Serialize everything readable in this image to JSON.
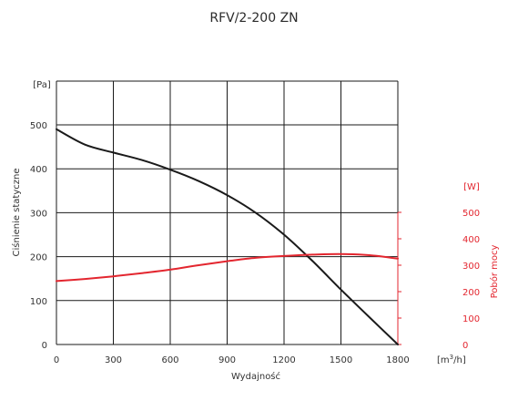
{
  "chart_data": {
    "type": "line",
    "title": "RFV/2-200 ZN",
    "xlabel": "Wydajność",
    "x_unit_prefix": "[m",
    "x_unit_sup": "3",
    "x_unit_suffix": "/h]",
    "xlim": [
      0,
      1800
    ],
    "x_ticks": [
      0,
      300,
      600,
      900,
      1200,
      1500,
      1800
    ],
    "y_left": {
      "label": "Ciśnienie statyczne",
      "unit": "[Pa]",
      "lim": [
        0,
        500
      ],
      "ticks": [
        0,
        100,
        200,
        300,
        400,
        500
      ],
      "color": "#1a1a1a"
    },
    "y_right": {
      "label": "Pobór mocy",
      "unit": "[W]",
      "lim": [
        0,
        500
      ],
      "ticks": [
        0,
        100,
        200,
        300,
        400,
        500
      ],
      "color": "#e3262f"
    },
    "grid": true,
    "series": [
      {
        "axis": "left",
        "color": "#1a1a1a",
        "x": [
          0,
          150,
          300,
          450,
          600,
          750,
          900,
          1050,
          1200,
          1350,
          1500,
          1650,
          1800
        ],
        "y": [
          490,
          455,
          437,
          420,
          398,
          372,
          340,
          300,
          250,
          190,
          125,
          62,
          0
        ]
      },
      {
        "axis": "right",
        "color": "#e3262f",
        "x": [
          0,
          150,
          300,
          450,
          600,
          750,
          900,
          1050,
          1200,
          1350,
          1500,
          1650,
          1800
        ],
        "y": [
          240,
          248,
          258,
          270,
          283,
          300,
          315,
          328,
          335,
          340,
          342,
          338,
          325
        ]
      }
    ]
  }
}
